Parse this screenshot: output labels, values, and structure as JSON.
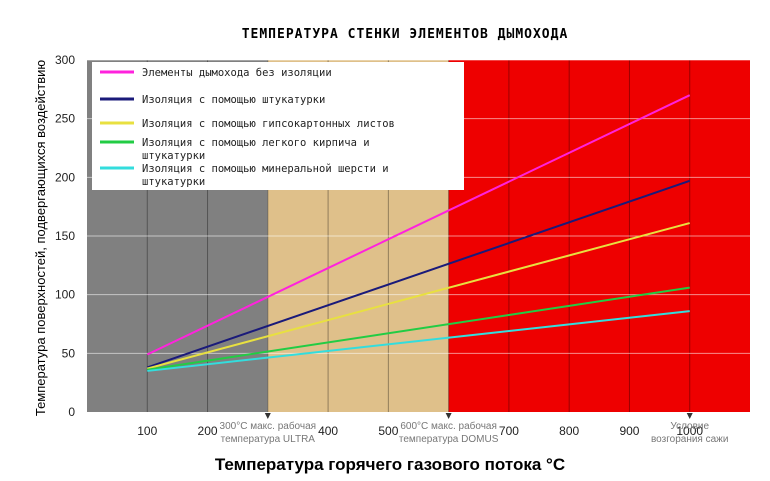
{
  "chart_data": {
    "type": "line",
    "title": "ТЕМПЕРАТУРА СТЕНКИ ЭЛЕМЕНТОВ ДЫМОХОДА",
    "xlabel": "Температура горячего газового потока °C",
    "ylabel": "Температура поверхностей, подвергающихся воздействию",
    "xlim": [
      0,
      1100
    ],
    "ylim": [
      0,
      300
    ],
    "x_ticks": [
      100,
      200,
      400,
      500,
      700,
      800,
      900,
      1000
    ],
    "y_ticks": [
      0,
      50,
      100,
      150,
      200,
      250,
      300
    ],
    "grid": true,
    "legend_position": "top-left",
    "zones": [
      {
        "from": 0,
        "to": 300,
        "color": "#808080"
      },
      {
        "from": 300,
        "to": 600,
        "color": "#dfc08a"
      },
      {
        "from": 600,
        "to": 1100,
        "color": "#ee0000"
      }
    ],
    "annotations": [
      {
        "x": 300,
        "lines": [
          "300°C макс. рабочая",
          "температура ULTRA"
        ]
      },
      {
        "x": 600,
        "lines": [
          "600°C макс. рабочая",
          "температура DOMUS"
        ]
      },
      {
        "x": 1000,
        "lines": [
          "Условие",
          "возгорания сажи"
        ]
      }
    ],
    "series": [
      {
        "name": "Элементы дымохода без изоляции",
        "color": "#ff22dd",
        "x": [
          100,
          1000
        ],
        "y": [
          49,
          270
        ]
      },
      {
        "name": "Изоляция с помощью штукатурки",
        "color": "#1a1a7a",
        "x": [
          100,
          1000
        ],
        "y": [
          38,
          197
        ]
      },
      {
        "name": "Изоляция с помощью гипсокартонных листов",
        "color": "#e8e040",
        "x": [
          100,
          1000
        ],
        "y": [
          37,
          161
        ]
      },
      {
        "name": "Изоляция с помощью легкого кирпича и штукатурки",
        "color": "#22cc44",
        "x": [
          100,
          1000
        ],
        "y": [
          36,
          106
        ]
      },
      {
        "name": "Изоляция с помощью минеральной шерсти и штукатурки",
        "color": "#33dddd",
        "x": [
          100,
          1000
        ],
        "y": [
          35,
          86
        ]
      }
    ],
    "legend": [
      {
        "lines": [
          "Элементы дымохода без изоляции"
        ]
      },
      {
        "lines": [
          "Изоляция с помощью штукатурки"
        ]
      },
      {
        "lines": [
          "Изоляция с помощью гипсокартонных листов"
        ]
      },
      {
        "lines": [
          "Изоляция с помощью легкого кирпича и",
          "штукатурки"
        ]
      },
      {
        "lines": [
          "Изоляция с помощью минеральной шерсти и",
          "штукатурки"
        ]
      }
    ]
  }
}
